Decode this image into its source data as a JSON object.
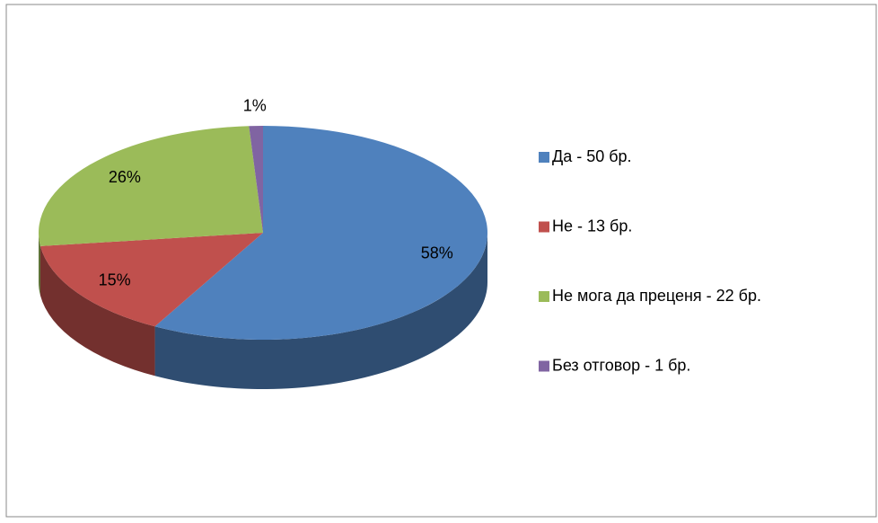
{
  "chart_data": {
    "type": "pie",
    "categories": [
      "Да - 50 бр.",
      "Не - 13 бр.",
      "Не мога да преценя - 22 бр.",
      "Без отговор - 1 бр."
    ],
    "values": [
      58,
      15,
      26,
      1
    ],
    "value_labels": [
      "58%",
      "15%",
      "26%",
      "1%"
    ],
    "colors": [
      "#4f81bd",
      "#c0504d",
      "#9bbb59",
      "#8064a2"
    ],
    "legend": "right"
  }
}
